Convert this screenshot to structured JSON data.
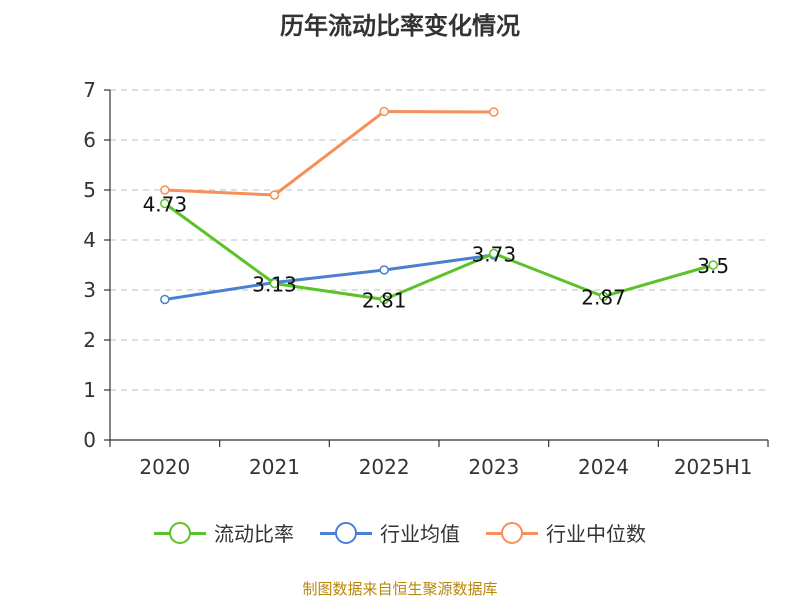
{
  "chart_title": "历年流动比率变化情况",
  "source": "制图数据来自恒生聚源数据库",
  "chart_data": {
    "type": "line",
    "title": "历年流动比率变化情况",
    "categories": [
      "2020",
      "2021",
      "2022",
      "2023",
      "2024",
      "2025H1"
    ],
    "y_ticks": [
      "0",
      "1",
      "2",
      "3",
      "4",
      "5",
      "6",
      "7"
    ],
    "ylim": [
      0,
      7
    ],
    "grid": true,
    "legend_position": "bottom",
    "series": [
      {
        "name": "流动比率",
        "color": "#5cc22a",
        "values": [
          4.73,
          3.13,
          2.81,
          3.73,
          2.87,
          3.5
        ],
        "labels": [
          "4.73",
          "3.13",
          "2.81",
          "3.73",
          "2.87",
          "3.5"
        ]
      },
      {
        "name": "行业均值",
        "color": "#4a7fd4",
        "values": [
          2.81,
          3.15,
          3.4,
          3.7,
          null,
          null
        ]
      },
      {
        "name": "行业中位数",
        "color": "#f5905a",
        "values": [
          5.0,
          4.9,
          6.57,
          6.56,
          null,
          null
        ]
      }
    ]
  }
}
